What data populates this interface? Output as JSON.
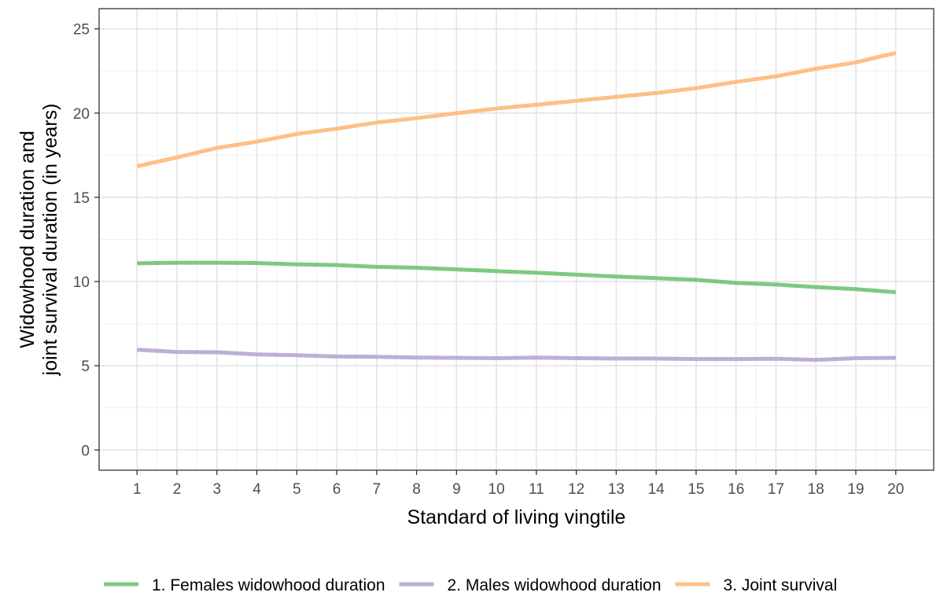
{
  "chart_data": {
    "type": "line",
    "title": "",
    "xlabel": "Standard of living vingtile",
    "ylabel_lines": [
      "Widowhood duration and",
      "joint survival duration (in years)"
    ],
    "x": [
      1,
      2,
      3,
      4,
      5,
      6,
      7,
      8,
      9,
      10,
      11,
      12,
      13,
      14,
      15,
      16,
      17,
      18,
      19,
      20
    ],
    "x_ticks": [
      "1",
      "2",
      "3",
      "4",
      "5",
      "6",
      "7",
      "8",
      "9",
      "10",
      "11",
      "12",
      "13",
      "14",
      "15",
      "16",
      "17",
      "18",
      "19",
      "20"
    ],
    "y_ticks": [
      "0",
      "5",
      "10",
      "15",
      "20",
      "25"
    ],
    "xlim": [
      0.05,
      20.95
    ],
    "ylim": [
      -1.2,
      26.2
    ],
    "grid": true,
    "legend_position": "bottom",
    "series": [
      {
        "name": "1. Females widowhood duration",
        "color": "#7fc97f",
        "values": [
          11.08,
          11.12,
          11.12,
          11.1,
          11.02,
          10.98,
          10.87,
          10.82,
          10.72,
          10.62,
          10.52,
          10.41,
          10.29,
          10.2,
          10.1,
          9.92,
          9.82,
          9.67,
          9.55,
          9.37
        ]
      },
      {
        "name": "2. Males widowhood duration",
        "color": "#beaed4",
        "values": [
          5.95,
          5.82,
          5.8,
          5.67,
          5.63,
          5.55,
          5.53,
          5.49,
          5.47,
          5.45,
          5.49,
          5.45,
          5.43,
          5.43,
          5.4,
          5.4,
          5.42,
          5.35,
          5.45,
          5.47
        ]
      },
      {
        "name": "3. Joint survival",
        "color": "#fdc086",
        "values": [
          16.84,
          17.37,
          17.93,
          18.3,
          18.76,
          19.07,
          19.44,
          19.7,
          19.99,
          20.27,
          20.49,
          20.73,
          20.96,
          21.19,
          21.48,
          21.85,
          22.18,
          22.63,
          23.01,
          23.57
        ]
      }
    ]
  }
}
